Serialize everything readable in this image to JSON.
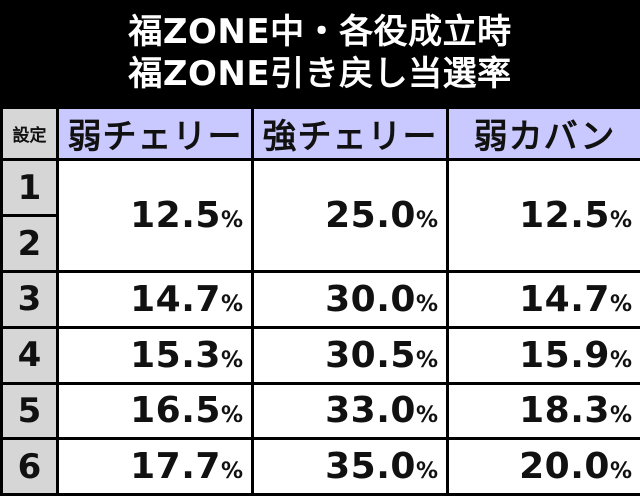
{
  "title": {
    "line1": "福ZONE中・各役成立時",
    "line2": "福ZONE引き戻し当選率"
  },
  "table": {
    "setting_header": "設定",
    "columns": [
      "弱チェリー",
      "強チェリー",
      "弱カバン"
    ],
    "rows": [
      {
        "setting": "1"
      },
      {
        "setting": "2"
      },
      {
        "setting": "3"
      },
      {
        "setting": "4"
      },
      {
        "setting": "5"
      },
      {
        "setting": "6"
      }
    ],
    "values": {
      "s12": [
        "12.5",
        "25.0",
        "12.5"
      ],
      "s3": [
        "14.7",
        "30.0",
        "14.7"
      ],
      "s4": [
        "15.3",
        "30.5",
        "15.9"
      ],
      "s5": [
        "16.5",
        "33.0",
        "18.3"
      ],
      "s6": [
        "17.7",
        "35.0",
        "20.0"
      ]
    },
    "unit": "%"
  }
}
